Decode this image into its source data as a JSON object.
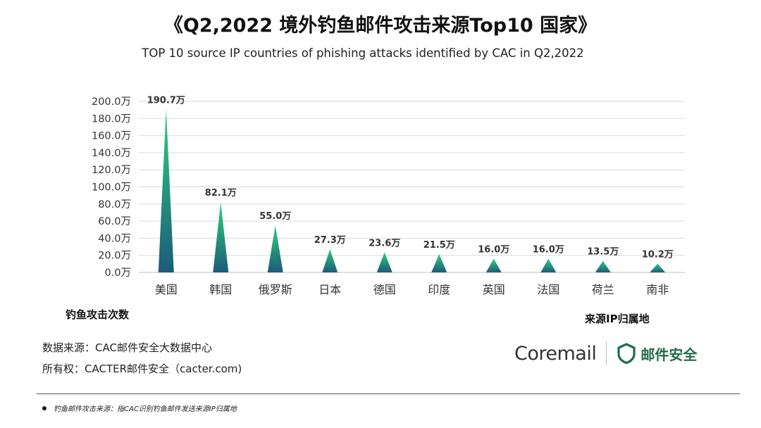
{
  "title": "《Q2,2022 境外钓鱼邮件攻击来源Top10 国家》",
  "subtitle": "TOP 10 source IP countries of phishing attacks identified by CAC in Q2,2022",
  "chart_data": {
    "type": "bar",
    "categories": [
      "美国",
      "韩国",
      "俄罗斯",
      "日本",
      "德国",
      "印度",
      "英国",
      "法国",
      "荷兰",
      "南非"
    ],
    "values": [
      190.7,
      82.1,
      55.0,
      27.3,
      23.6,
      21.5,
      16.0,
      16.0,
      13.5,
      10.2
    ],
    "data_labels": [
      "190.7万",
      "82.1万",
      "55.0万",
      "27.3万",
      "23.6万",
      "21.5万",
      "16.0万",
      "16.0万",
      "13.5万",
      "10.2万"
    ],
    "y_ticks": [
      0,
      20,
      40,
      60,
      80,
      100,
      120,
      140,
      160,
      180,
      200
    ],
    "y_tick_labels": [
      "0.0万",
      "20.0万",
      "40.0万",
      "60.0万",
      "80.0万",
      "100.0万",
      "120.0万",
      "140.0万",
      "160.0万",
      "180.0万",
      "200.0万"
    ],
    "ylim": [
      0,
      200
    ],
    "ylabel": "钓鱼攻击次数",
    "xlabel": "来源IP归属地",
    "grid": true,
    "bar_shape": "triangle",
    "colors": {
      "top": "#2ecf7c",
      "bottom": "#1c5b7a",
      "grid": "#d9d9d9"
    }
  },
  "source": {
    "line1": "数据来源：CAC邮件安全大数据中心",
    "line2": "所有权：CACTER邮件安全（cacter.com)"
  },
  "brand": {
    "coremail": "Coremail",
    "security": "邮件安全",
    "shield_icon": "shield-icon",
    "shield_color": "#1f6b48"
  },
  "footnote": "钓鱼邮件攻击来源：指CAC识别钓鱼邮件发送来源IP归属地"
}
